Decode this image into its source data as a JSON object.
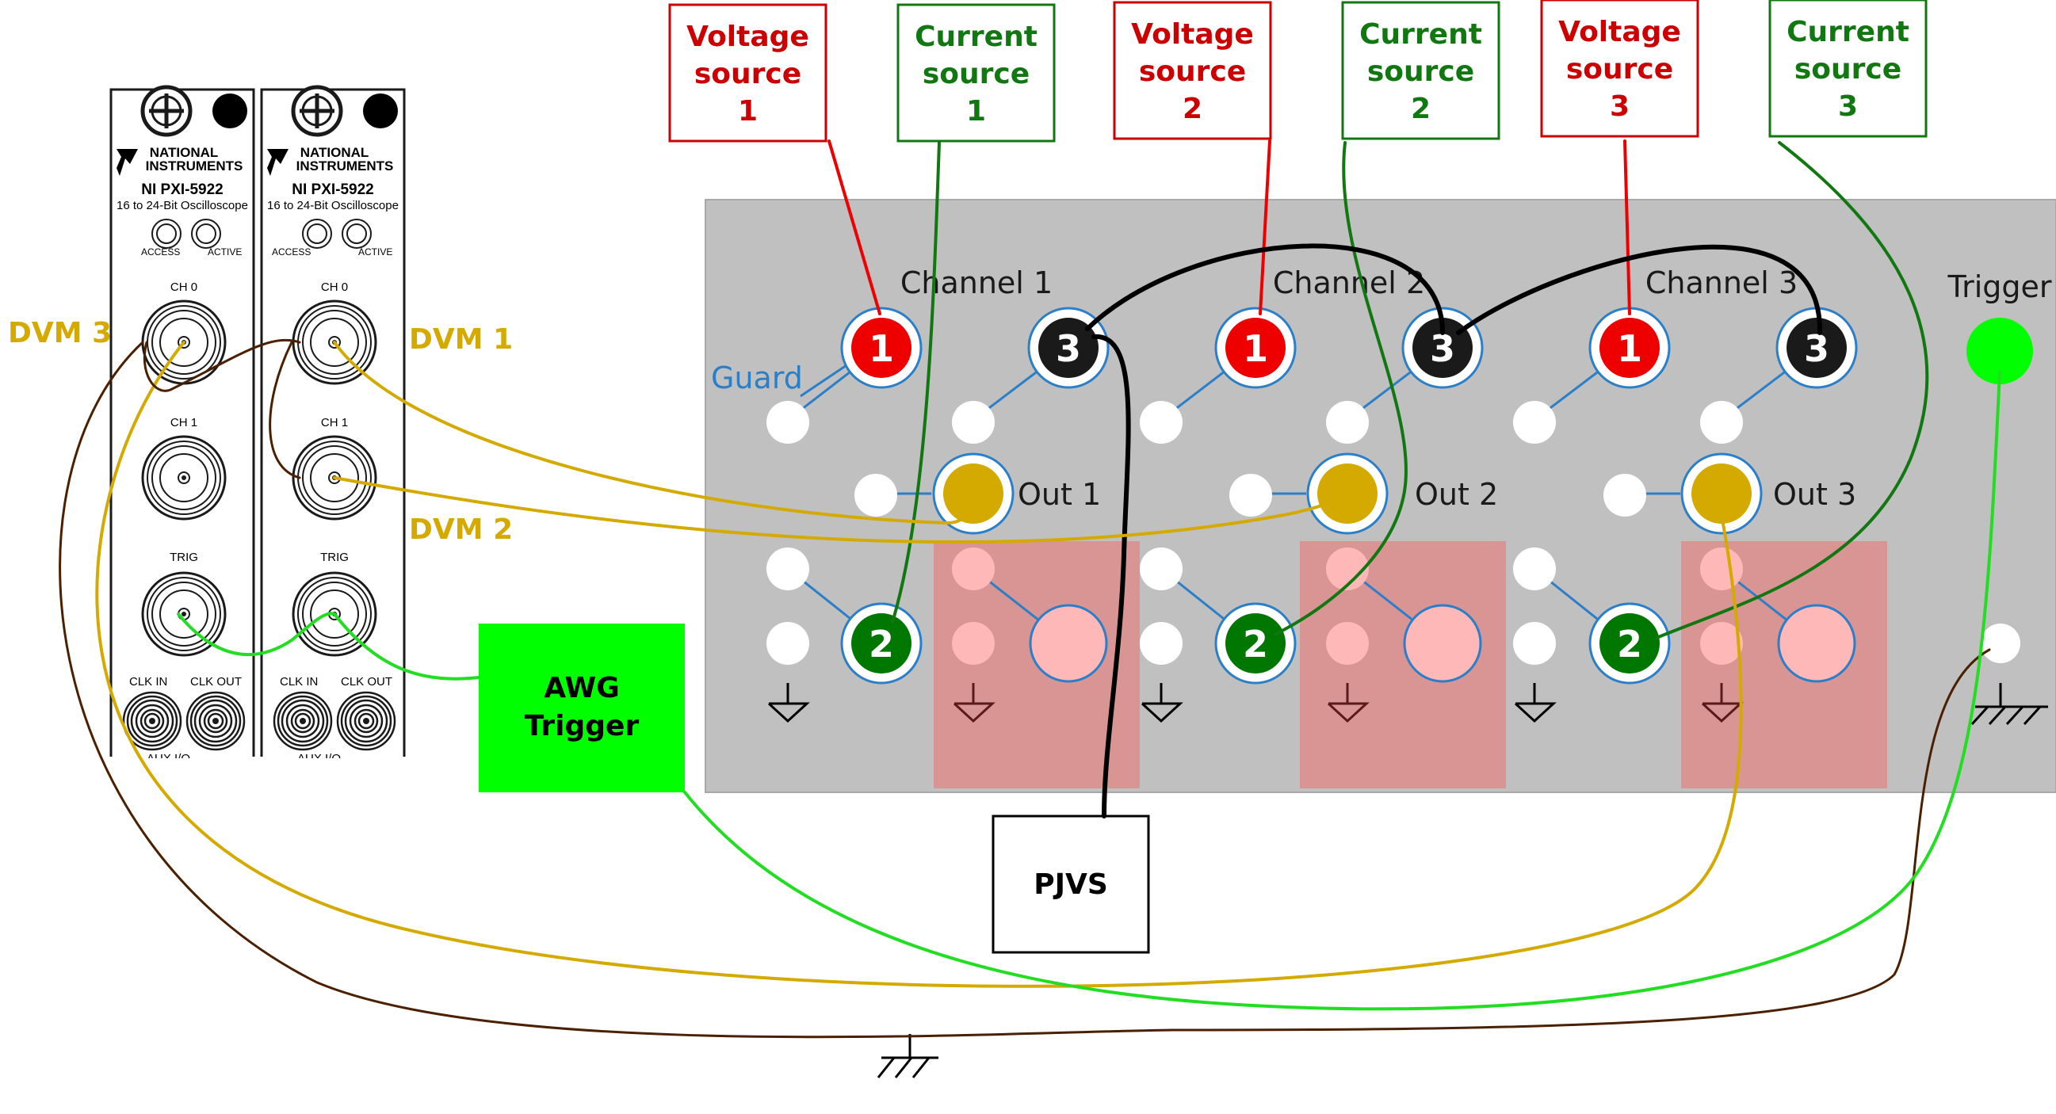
{
  "sources": [
    {
      "id": "vs1",
      "line1": "Voltage",
      "line2": "source",
      "line3": "1",
      "color": "#cc0000"
    },
    {
      "id": "cs1",
      "line1": "Current",
      "line2": "source",
      "line3": "1",
      "color": "#117711"
    },
    {
      "id": "vs2",
      "line1": "Voltage",
      "line2": "source",
      "line3": "2",
      "color": "#cc0000"
    },
    {
      "id": "cs2",
      "line1": "Current",
      "line2": "source",
      "line3": "2",
      "color": "#117711"
    },
    {
      "id": "vs3",
      "line1": "Voltage",
      "line2": "source",
      "line3": "3",
      "color": "#cc0000"
    },
    {
      "id": "cs3",
      "line1": "Current",
      "line2": "source",
      "line3": "3",
      "color": "#117711"
    }
  ],
  "panel": {
    "channels": [
      "Channel 1",
      "Channel 2",
      "Channel 3"
    ],
    "outputs": [
      "Out 1",
      "Out 2",
      "Out 3"
    ],
    "guard": "Guard",
    "trigger": "Trigger",
    "terminal_numbers": {
      "voltage": "1",
      "current": "2",
      "common": "3"
    }
  },
  "dvm_labels": {
    "dvm1": "DVM 1",
    "dvm2": "DVM 2",
    "dvm3": "DVM 3"
  },
  "awg": {
    "line1": "AWG",
    "line2": "Trigger"
  },
  "pjvs": "PJVS",
  "oscilloscope": {
    "brand_line1": "NATIONAL",
    "brand_line2": "INSTRUMENTS",
    "model": "NI PXI-5922",
    "subtitle": "16 to 24-Bit Oscilloscope",
    "access": "ACCESS",
    "active": "ACTIVE",
    "ch0": "CH 0",
    "ch1": "CH 1",
    "trig": "TRIG",
    "clk_in": "CLK IN",
    "clk_out": "CLK OUT",
    "aux": "AUX I/O"
  },
  "colors": {
    "voltage": "#ee0000",
    "current": "#007700",
    "common": "#1a1a1a",
    "output": "#d4aa00",
    "guard": "#2a7fc8",
    "trigger": "#00ff00",
    "ground_wire": "#4a2000",
    "panel": "#c0c0c0",
    "shield": "#d99494"
  }
}
